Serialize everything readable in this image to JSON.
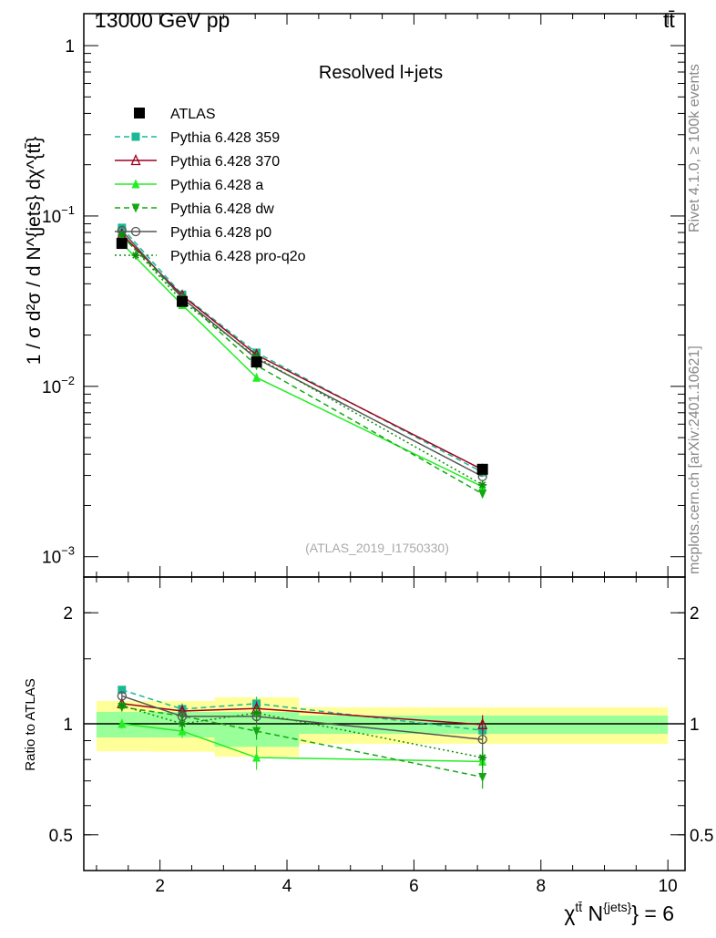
{
  "chart_data": [
    {
      "type": "line",
      "title": "Resolved l+jets",
      "top_left_label": "13000 GeV pp",
      "top_right_label": "tt̄",
      "ylabel": "1 / σ d²σ / d N^{jets} dχ^{tt̄}",
      "yscale": "log",
      "ylim": [
        0.00076,
        1.54
      ],
      "xlim": [
        0.8,
        10.27
      ],
      "ytick_labels": [
        "1",
        "10",
        "10",
        "10"
      ],
      "ytick_exponents": [
        "",
        "−1",
        "−2",
        "−3"
      ],
      "watermark": "(ATLAS_2019_I1750330)",
      "side_label_1": "Rivet 4.1.0, ≥ 100k events",
      "side_label_2": "mcplots.cern.ch [arXiv:2401.10621]",
      "x": [
        1.4,
        2.35,
        3.52,
        7.08
      ],
      "data": {
        "name": "ATLAS",
        "values": [
          0.069,
          0.0315,
          0.0139,
          0.00326
        ]
      },
      "legend_position": "top-left"
    },
    {
      "type": "line",
      "ylabel": "Ratio to ATLAS",
      "yscale": "log",
      "ylim": [
        0.4,
        2.5
      ],
      "ytick_labels": [
        "2",
        "1",
        "0.5"
      ],
      "xlabel": "χ^{tt̄} N^{jets} = 6",
      "xlabel_main": "χ",
      "xlabel_sup1": "tt̄",
      "xlabel_mid": " N",
      "xlabel_sup2": "{jets}",
      "xlabel_end": "} = 6",
      "xtick_labels": [
        "2",
        "4",
        "6",
        "8",
        "10"
      ],
      "xticks": [
        2,
        4,
        6,
        8,
        10
      ],
      "bin_edges": [
        1.0,
        1.86,
        2.86,
        4.19,
        10.0
      ],
      "band_total": {
        "up": [
          1.154,
          1.154,
          1.18,
          1.109
        ],
        "down": [
          0.842,
          0.84,
          0.814,
          0.882
        ],
        "color": "#ffff99"
      },
      "band_stat": {
        "up": [
          1.077,
          1.077,
          1.077,
          1.053
        ],
        "down": [
          0.918,
          0.918,
          0.866,
          0.939
        ],
        "color": "#99ff99"
      },
      "series": [
        {
          "name": "Pythia 6.428 359",
          "ratio": [
            1.236,
            1.096,
            1.134,
            0.96
          ],
          "err": [
            0.03,
            0.04,
            0.05,
            0.05
          ],
          "color": "#1ab894",
          "dash": "6,4",
          "marker": "square"
        },
        {
          "name": "Pythia 6.428 370",
          "ratio": [
            1.134,
            1.083,
            1.1,
            0.995
          ],
          "err": [
            0.03,
            0.04,
            0.05,
            0.06
          ],
          "color": "#a0001e",
          "dash": "",
          "marker": "triangle-open"
        },
        {
          "name": "Pythia 6.428 a",
          "ratio": [
            1.0,
            0.955,
            0.81,
            0.79
          ],
          "err": [
            0.03,
            0.04,
            0.06,
            0.05
          ],
          "color": "#22ee22",
          "dash": "",
          "marker": "triangle"
        },
        {
          "name": "Pythia 6.428 dw",
          "ratio": [
            1.11,
            1.05,
            0.955,
            0.717
          ],
          "err": [
            0.03,
            0.04,
            0.05,
            0.05
          ],
          "color": "#13a813",
          "dash": "6,4",
          "marker": "triangle-down"
        },
        {
          "name": "Pythia 6.428 p0",
          "ratio": [
            1.19,
            1.047,
            1.047,
            0.907
          ],
          "err": [
            0.03,
            0.04,
            0.05,
            0.05
          ],
          "color": "#555555",
          "dash": "",
          "marker": "circle-open"
        },
        {
          "name": "Pythia 6.428 pro-q2o",
          "ratio": [
            1.12,
            1.0,
            1.07,
            0.81
          ],
          "err": [
            0.03,
            0.04,
            0.05,
            0.05
          ],
          "color": "#0b8f0b",
          "dash": "2,3",
          "marker": "star"
        }
      ]
    }
  ]
}
